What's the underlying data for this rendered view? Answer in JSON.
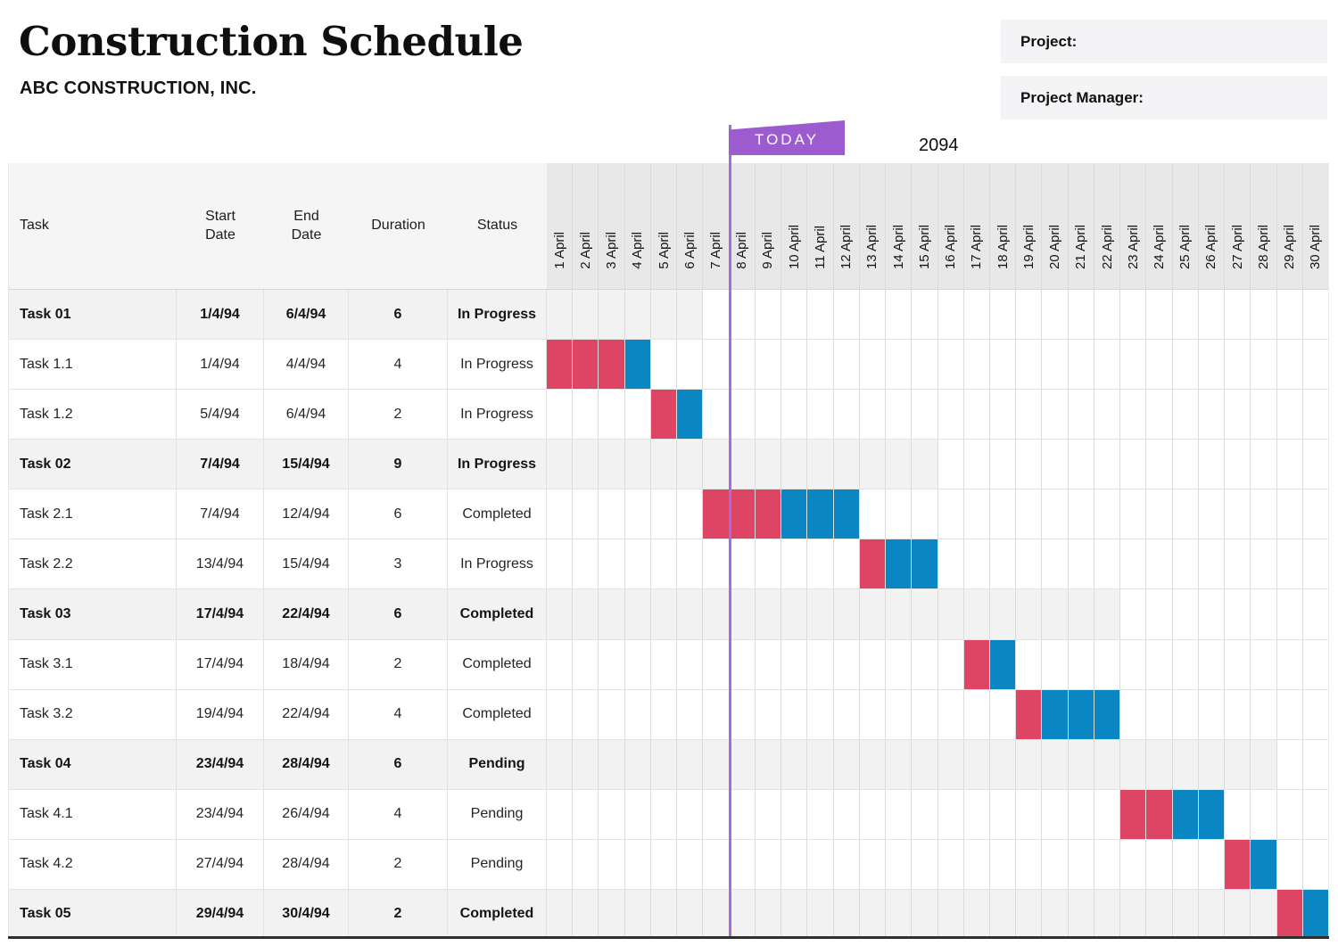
{
  "header": {
    "title": "Construction Schedule",
    "subtitle": "ABC CONSTRUCTION, INC.",
    "project_label": "Project:",
    "project_value": "",
    "project_manager_label": "Project Manager:",
    "project_manager_value": "",
    "today_label": "TODAY",
    "year_label": "2094"
  },
  "colors": {
    "bar_red": "#de4464",
    "bar_blue": "#0a87c2",
    "today_flag": "#9c5cd0",
    "today_line": "#a56ce2",
    "group_row_bg": "#f3f2f3",
    "date_header_bg": "#e9e8e9",
    "table_header_bg": "#f5f5f6"
  },
  "table": {
    "columns": [
      "Task",
      "Start Date",
      "End Date",
      "Duration",
      "Status"
    ]
  },
  "chart_data": {
    "type": "gantt",
    "title": "Construction Schedule",
    "x_axis": {
      "unit": "day",
      "year_label": "2094",
      "labels": [
        "1 April",
        "2 April",
        "3 April",
        "4 April",
        "5 April",
        "6 April",
        "7 April",
        "8 April",
        "9 April",
        "10 April",
        "11 April",
        "12 April",
        "13 April",
        "14 April",
        "15 April",
        "16 April",
        "17 April",
        "18 April",
        "19 April",
        "20 April",
        "21 April",
        "22 April",
        "23 April",
        "24 April",
        "25 April",
        "26 April",
        "27 April",
        "28 April",
        "29 April",
        "30 April"
      ]
    },
    "today_marker": {
      "label": "TODAY",
      "position_after_day": 7
    },
    "tasks": [
      {
        "name": "Task 01",
        "start": "1/4/94",
        "end": "6/4/94",
        "duration": "6",
        "status": "In Progress",
        "is_group": true,
        "band_end_day": 6,
        "bars": []
      },
      {
        "name": "Task 1.1",
        "start": "1/4/94",
        "end": "4/4/94",
        "duration": "4",
        "status": "In Progress",
        "is_group": false,
        "bars": [
          {
            "from": 1,
            "to": 3,
            "color": "red"
          },
          {
            "from": 4,
            "to": 4,
            "color": "blue"
          }
        ]
      },
      {
        "name": "Task 1.2",
        "start": "5/4/94",
        "end": "6/4/94",
        "duration": "2",
        "status": "In Progress",
        "is_group": false,
        "bars": [
          {
            "from": 5,
            "to": 5,
            "color": "red"
          },
          {
            "from": 6,
            "to": 6,
            "color": "blue"
          }
        ]
      },
      {
        "name": "Task 02",
        "start": "7/4/94",
        "end": "15/4/94",
        "duration": "9",
        "status": "In Progress",
        "is_group": true,
        "band_end_day": 15,
        "bars": []
      },
      {
        "name": "Task 2.1",
        "start": "7/4/94",
        "end": "12/4/94",
        "duration": "6",
        "status": "Completed",
        "is_group": false,
        "bars": [
          {
            "from": 7,
            "to": 9,
            "color": "red"
          },
          {
            "from": 10,
            "to": 12,
            "color": "blue"
          }
        ]
      },
      {
        "name": "Task 2.2",
        "start": "13/4/94",
        "end": "15/4/94",
        "duration": "3",
        "status": "In Progress",
        "is_group": false,
        "bars": [
          {
            "from": 13,
            "to": 13,
            "color": "red"
          },
          {
            "from": 14,
            "to": 15,
            "color": "blue"
          }
        ]
      },
      {
        "name": "Task 03",
        "start": "17/4/94",
        "end": "22/4/94",
        "duration": "6",
        "status": "Completed",
        "is_group": true,
        "band_end_day": 22,
        "bars": []
      },
      {
        "name": "Task 3.1",
        "start": "17/4/94",
        "end": "18/4/94",
        "duration": "2",
        "status": "Completed",
        "is_group": false,
        "bars": [
          {
            "from": 17,
            "to": 17,
            "color": "red"
          },
          {
            "from": 18,
            "to": 18,
            "color": "blue"
          }
        ]
      },
      {
        "name": "Task 3.2",
        "start": "19/4/94",
        "end": "22/4/94",
        "duration": "4",
        "status": "Completed",
        "is_group": false,
        "bars": [
          {
            "from": 19,
            "to": 19,
            "color": "red"
          },
          {
            "from": 20,
            "to": 22,
            "color": "blue"
          }
        ]
      },
      {
        "name": "Task 04",
        "start": "23/4/94",
        "end": "28/4/94",
        "duration": "6",
        "status": "Pending",
        "is_group": true,
        "band_end_day": 28,
        "bars": []
      },
      {
        "name": "Task 4.1",
        "start": "23/4/94",
        "end": "26/4/94",
        "duration": "4",
        "status": "Pending",
        "is_group": false,
        "bars": [
          {
            "from": 23,
            "to": 24,
            "color": "red"
          },
          {
            "from": 25,
            "to": 26,
            "color": "blue"
          }
        ]
      },
      {
        "name": "Task 4.2",
        "start": "27/4/94",
        "end": "28/4/94",
        "duration": "2",
        "status": "Pending",
        "is_group": false,
        "bars": [
          {
            "from": 27,
            "to": 27,
            "color": "red"
          },
          {
            "from": 28,
            "to": 28,
            "color": "blue"
          }
        ]
      },
      {
        "name": "Task 05",
        "start": "29/4/94",
        "end": "30/4/94",
        "duration": "2",
        "status": "Completed",
        "is_group": true,
        "band_end_day": 30,
        "bars": [
          {
            "from": 29,
            "to": 29,
            "color": "red"
          },
          {
            "from": 30,
            "to": 30,
            "color": "blue"
          }
        ]
      }
    ]
  }
}
